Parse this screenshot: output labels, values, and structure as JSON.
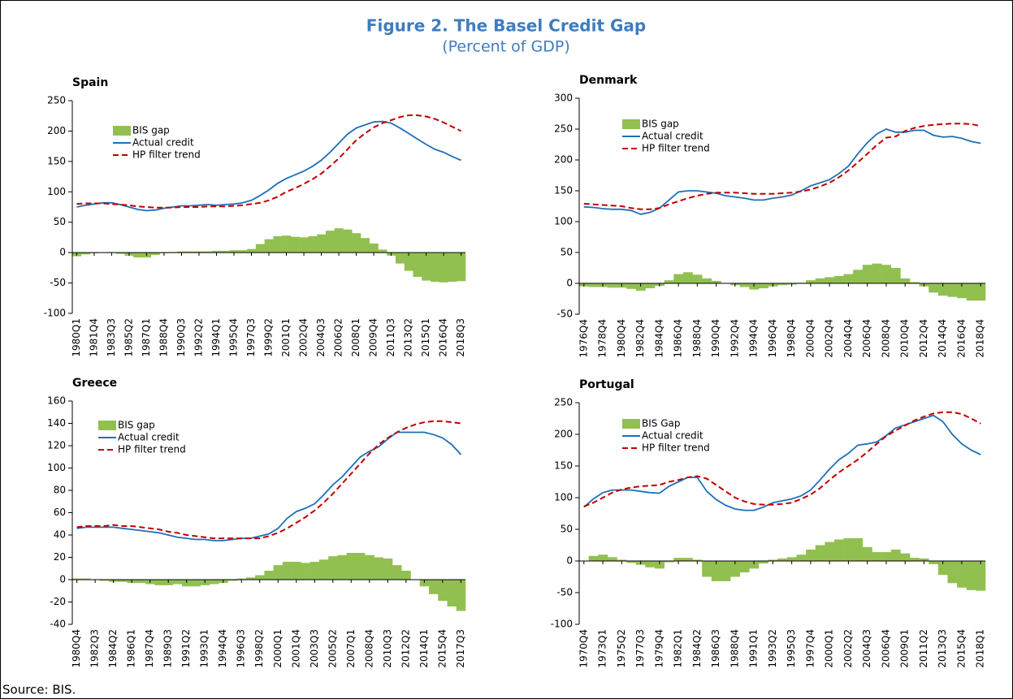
{
  "title": "Figure 2. The Basel Credit Gap",
  "subtitle": "(Percent of GDP)",
  "source": "Source: BIS.",
  "chart_data": [
    {
      "type": "combo",
      "title": "Spain",
      "categories": [
        "1980Q1",
        null,
        "1981Q4",
        null,
        "1983Q3",
        null,
        "1985Q2",
        null,
        "1987Q1",
        null,
        "1988Q4",
        null,
        "1990Q3",
        null,
        "1992Q2",
        null,
        "1994Q1",
        null,
        "1995Q4",
        null,
        "1997Q3",
        null,
        "1999Q2",
        null,
        "2001Q1",
        null,
        "2002Q4",
        null,
        "2004Q3",
        null,
        "2006Q2",
        null,
        "2008Q1",
        null,
        "2009Q4",
        null,
        "2011Q3",
        null,
        "2013Q2",
        null,
        "2015Q1",
        null,
        "2016Q4",
        null,
        "2018Q3"
      ],
      "ylim": [
        -100,
        250
      ],
      "yticks": [
        -100,
        -50,
        0,
        50,
        100,
        150,
        200,
        250
      ],
      "series": [
        {
          "name": "BIS gap",
          "kind": "bar",
          "color": "#92c050",
          "values": [
            -6,
            -3,
            -1,
            0,
            1,
            -2,
            -5,
            -8,
            -8,
            -4,
            -1,
            1,
            2,
            2,
            2,
            2,
            3,
            3,
            4,
            4,
            6,
            14,
            22,
            27,
            28,
            26,
            25,
            27,
            30,
            36,
            40,
            38,
            32,
            24,
            15,
            5,
            -5,
            -18,
            -30,
            -40,
            -46,
            -48,
            -49,
            -48,
            -47
          ]
        },
        {
          "name": "Actual credit",
          "kind": "line",
          "color": "#1f6fb8",
          "dashed": false,
          "values": [
            75,
            78,
            80,
            82,
            82,
            79,
            75,
            71,
            69,
            70,
            73,
            75,
            77,
            77,
            78,
            79,
            78,
            79,
            80,
            82,
            86,
            94,
            103,
            114,
            122,
            128,
            134,
            142,
            152,
            165,
            180,
            195,
            205,
            210,
            215,
            216,
            213,
            205,
            196,
            187,
            178,
            170,
            165,
            158,
            152
          ]
        },
        {
          "name": "HP filter trend",
          "kind": "line",
          "color": "#c00000",
          "dashed": true,
          "values": [
            80,
            81,
            81,
            81,
            80,
            79,
            78,
            76,
            75,
            74,
            74,
            74,
            75,
            75,
            75,
            76,
            76,
            76,
            77,
            78,
            80,
            82,
            86,
            92,
            100,
            106,
            113,
            121,
            130,
            142,
            155,
            170,
            185,
            196,
            206,
            213,
            218,
            223,
            226,
            226,
            224,
            220,
            214,
            207,
            200
          ]
        }
      ]
    },
    {
      "type": "combo",
      "title": "Denmark",
      "categories": [
        "1976Q4",
        null,
        "1978Q4",
        null,
        "1980Q4",
        null,
        "1982Q4",
        null,
        "1984Q4",
        null,
        "1986Q4",
        null,
        "1988Q4",
        null,
        "1990Q4",
        null,
        "1992Q4",
        null,
        "1994Q4",
        null,
        "1996Q4",
        null,
        "1998Q4",
        null,
        "2000Q4",
        null,
        "2002Q4",
        null,
        "2004Q4",
        null,
        "2006Q4",
        null,
        "2008Q4",
        null,
        "2010Q4",
        null,
        "2012Q4",
        null,
        "2014Q4",
        null,
        "2016Q4",
        null,
        "2018Q4"
      ],
      "ylim": [
        -50,
        300
      ],
      "yticks": [
        -50,
        0,
        50,
        100,
        150,
        200,
        250,
        300
      ],
      "series": [
        {
          "name": "BIS gap",
          "kind": "bar",
          "color": "#92c050",
          "values": [
            -5,
            -6,
            -6,
            -7,
            -7,
            -9,
            -12,
            -8,
            -4,
            5,
            15,
            18,
            14,
            8,
            4,
            0,
            -3,
            -6,
            -10,
            -8,
            -5,
            -3,
            -2,
            1,
            5,
            8,
            10,
            12,
            15,
            22,
            30,
            32,
            30,
            25,
            8,
            2,
            -5,
            -15,
            -20,
            -22,
            -24,
            -28,
            -28
          ]
        },
        {
          "name": "Actual credit",
          "kind": "line",
          "color": "#1f6fb8",
          "dashed": false,
          "values": [
            124,
            123,
            121,
            120,
            120,
            118,
            112,
            115,
            122,
            135,
            148,
            150,
            150,
            148,
            146,
            142,
            140,
            138,
            135,
            135,
            138,
            140,
            143,
            150,
            158,
            163,
            168,
            178,
            190,
            210,
            228,
            242,
            250,
            245,
            245,
            248,
            248,
            240,
            237,
            238,
            235,
            230,
            227
          ]
        },
        {
          "name": "HP filter trend",
          "kind": "line",
          "color": "#c00000",
          "dashed": true,
          "values": [
            129,
            128,
            127,
            126,
            125,
            122,
            120,
            120,
            122,
            128,
            133,
            138,
            142,
            145,
            147,
            147,
            147,
            146,
            145,
            145,
            145,
            146,
            147,
            149,
            152,
            157,
            163,
            172,
            183,
            196,
            210,
            224,
            236,
            238,
            247,
            252,
            255,
            257,
            258,
            259,
            259,
            258,
            255
          ]
        }
      ]
    },
    {
      "type": "combo",
      "title": "Greece",
      "categories": [
        "1980Q4",
        null,
        "1982Q3",
        null,
        "1984Q2",
        null,
        "1986Q1",
        null,
        "1987Q4",
        null,
        "1989Q3",
        null,
        "1991Q2",
        null,
        "1993Q1",
        null,
        "1994Q4",
        null,
        "1996Q3",
        null,
        "1998Q2",
        null,
        "2000Q1",
        null,
        "2001Q4",
        null,
        "2003Q3",
        null,
        "2005Q2",
        null,
        "2007Q1",
        null,
        "2008Q4",
        null,
        "2010Q3",
        null,
        "2012Q2",
        null,
        "2014Q1",
        null,
        "2015Q4",
        null,
        "2017Q3"
      ],
      "ylim": [
        -40,
        160
      ],
      "yticks": [
        -40,
        -20,
        0,
        20,
        40,
        60,
        80,
        100,
        120,
        140,
        160
      ],
      "series": [
        {
          "name": "BIS gap",
          "kind": "bar",
          "color": "#92c050",
          "values": [
            1,
            1,
            0,
            -1,
            -2,
            -2,
            -3,
            -3,
            -4,
            -5,
            -5,
            -4,
            -6,
            -6,
            -5,
            -4,
            -3,
            -1,
            1,
            2,
            4,
            8,
            13,
            16,
            16,
            15,
            16,
            18,
            21,
            22,
            24,
            24,
            22,
            20,
            19,
            13,
            8,
            0,
            -6,
            -13,
            -19,
            -24,
            -28
          ]
        },
        {
          "name": "Actual credit",
          "kind": "line",
          "color": "#1f6fb8",
          "dashed": false,
          "values": [
            46,
            47,
            47,
            47,
            47,
            46,
            45,
            44,
            43,
            42,
            40,
            38,
            37,
            36,
            36,
            35,
            35,
            36,
            37,
            37,
            39,
            41,
            46,
            55,
            61,
            64,
            68,
            76,
            85,
            92,
            101,
            110,
            115,
            119,
            126,
            132,
            132,
            132,
            132,
            130,
            127,
            121,
            112
          ]
        },
        {
          "name": "HP filter trend",
          "kind": "line",
          "color": "#c00000",
          "dashed": true,
          "values": [
            47,
            48,
            48,
            48,
            49,
            48,
            48,
            47,
            46,
            45,
            43,
            42,
            40,
            39,
            38,
            37,
            37,
            37,
            37,
            37,
            37,
            39,
            42,
            46,
            51,
            56,
            62,
            69,
            77,
            86,
            95,
            104,
            113,
            121,
            127,
            132,
            136,
            139,
            141,
            142,
            142,
            141,
            140
          ]
        }
      ]
    },
    {
      "type": "combo",
      "title": "Portugal",
      "categories": [
        "1970Q4",
        null,
        "1973Q1",
        null,
        "1975Q2",
        null,
        "1977Q3",
        null,
        "1979Q4",
        null,
        "1982Q1",
        null,
        "1984Q2",
        null,
        "1986Q3",
        null,
        "1988Q4",
        null,
        "1991Q1",
        null,
        "1993Q2",
        null,
        "1995Q3",
        null,
        "1997Q4",
        null,
        "2000Q1",
        null,
        "2002Q2",
        null,
        "2004Q3",
        null,
        "2006Q4",
        null,
        "2009Q1",
        null,
        "2011Q2",
        null,
        "2013Q3",
        null,
        "2015Q4",
        null,
        "2018Q1"
      ],
      "ylim": [
        -100,
        250
      ],
      "yticks": [
        -100,
        -50,
        0,
        50,
        100,
        150,
        200,
        250
      ],
      "series": [
        {
          "name": "BIS Gap",
          "kind": "bar",
          "color": "#92c050",
          "values": [
            0,
            8,
            10,
            6,
            2,
            -3,
            -6,
            -10,
            -12,
            -2,
            5,
            5,
            2,
            -25,
            -32,
            -32,
            -25,
            -18,
            -12,
            -4,
            2,
            4,
            6,
            10,
            18,
            25,
            30,
            34,
            36,
            36,
            22,
            14,
            14,
            18,
            12,
            5,
            4,
            -5,
            -22,
            -35,
            -42,
            -46,
            -47
          ]
        },
        {
          "name": "Actual credit",
          "kind": "line",
          "color": "#1f6fb8",
          "dashed": false,
          "values": [
            85,
            98,
            108,
            112,
            112,
            112,
            110,
            108,
            107,
            118,
            125,
            132,
            132,
            110,
            97,
            88,
            82,
            80,
            80,
            85,
            92,
            95,
            98,
            103,
            112,
            128,
            145,
            160,
            170,
            183,
            185,
            188,
            198,
            210,
            215,
            220,
            225,
            230,
            220,
            200,
            185,
            175,
            168
          ]
        },
        {
          "name": "HP filter trend",
          "kind": "line",
          "color": "#c00000",
          "dashed": true,
          "values": [
            86,
            92,
            100,
            108,
            113,
            116,
            118,
            119,
            120,
            125,
            128,
            132,
            134,
            130,
            120,
            110,
            100,
            94,
            90,
            89,
            89,
            90,
            92,
            98,
            105,
            115,
            128,
            140,
            150,
            160,
            172,
            185,
            197,
            206,
            214,
            222,
            228,
            233,
            235,
            235,
            232,
            225,
            217
          ]
        }
      ]
    }
  ]
}
